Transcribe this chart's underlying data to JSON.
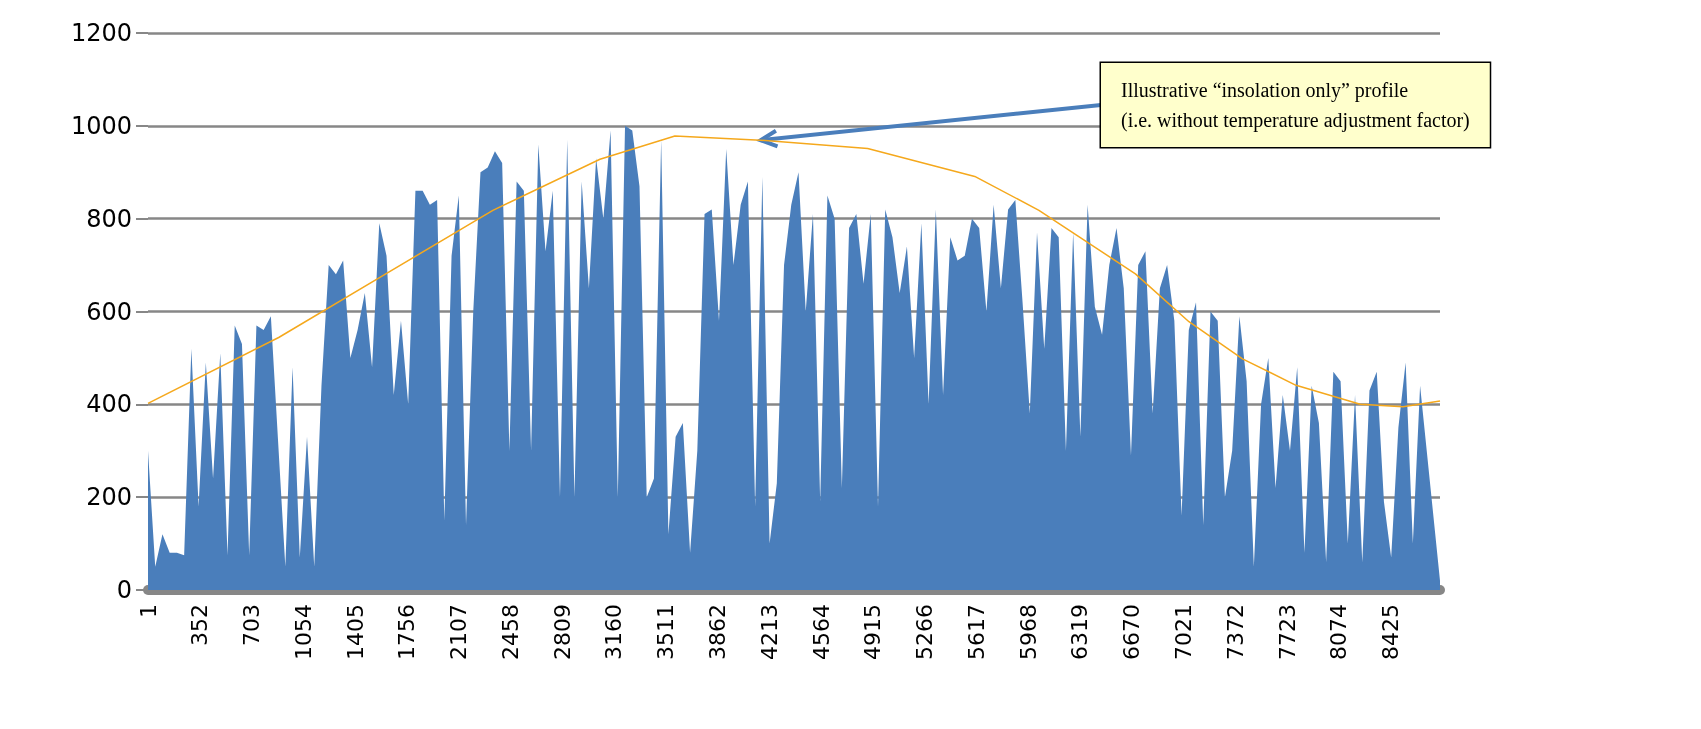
{
  "chart_data": {
    "type": "area",
    "xlim": [
      1,
      8760
    ],
    "xticks": [
      1,
      352,
      703,
      1054,
      1405,
      1756,
      2107,
      2458,
      2809,
      3160,
      3511,
      3862,
      4213,
      4564,
      4915,
      5266,
      5617,
      5968,
      6319,
      6670,
      7021,
      7372,
      7723,
      8074,
      8425
    ],
    "ylim": [
      0,
      1200
    ],
    "yticks": [
      0,
      200,
      400,
      600,
      800,
      1000,
      1200
    ],
    "grid": "y",
    "marker": "none",
    "annotations": [
      {
        "text": "Illustrative “insolation only” profile\n(i.e. without temperature adjustment factor)",
        "x": 4154,
        "y": 969
      }
    ],
    "series": [
      {
        "color": "#4a7ebb",
        "x": [
          1,
          50,
          99,
          148,
          197,
          246,
          295,
          344,
          393,
          442,
          491,
          540,
          589,
          638,
          687,
          736,
          785,
          834,
          883,
          932,
          981,
          1030,
          1079,
          1128,
          1177,
          1226,
          1275,
          1324,
          1373,
          1422,
          1471,
          1520,
          1569,
          1618,
          1667,
          1716,
          1765,
          1814,
          1863,
          1912,
          1961,
          2010,
          2059,
          2108,
          2157,
          2206,
          2255,
          2304,
          2353,
          2402,
          2451,
          2500,
          2549,
          2598,
          2647,
          2696,
          2745,
          2794,
          2843,
          2892,
          2941,
          2990,
          3039,
          3088,
          3137,
          3186,
          3235,
          3284,
          3333,
          3382,
          3431,
          3480,
          3529,
          3578,
          3627,
          3676,
          3725,
          3774,
          3823,
          3872,
          3921,
          3970,
          4019,
          4068,
          4117,
          4166,
          4215,
          4264,
          4313,
          4362,
          4411,
          4460,
          4509,
          4558,
          4607,
          4656,
          4705,
          4754,
          4803,
          4852,
          4901,
          4950,
          4999,
          5048,
          5097,
          5146,
          5195,
          5244,
          5293,
          5342,
          5391,
          5440,
          5489,
          5538,
          5587,
          5636,
          5685,
          5734,
          5783,
          5832,
          5881,
          5930,
          5979,
          6028,
          6077,
          6126,
          6175,
          6224,
          6273,
          6322,
          6371,
          6420,
          6469,
          6518,
          6567,
          6616,
          6665,
          6714,
          6763,
          6812,
          6861,
          6910,
          6959,
          7008,
          7057,
          7106,
          7155,
          7204,
          7253,
          7302,
          7351,
          7400,
          7449,
          7498,
          7547,
          7596,
          7645,
          7694,
          7743,
          7792,
          7841,
          7890,
          7939,
          7988,
          8037,
          8086,
          8135,
          8184,
          8233,
          8282,
          8331,
          8380,
          8429,
          8478,
          8527,
          8576,
          8625,
          8760
        ],
        "values": [
          300,
          50,
          120,
          80,
          80,
          75,
          520,
          180,
          490,
          240,
          510,
          75,
          570,
          530,
          75,
          570,
          560,
          590,
          320,
          50,
          480,
          70,
          330,
          50,
          440,
          700,
          680,
          710,
          500,
          560,
          640,
          480,
          790,
          720,
          420,
          580,
          400,
          860,
          860,
          830,
          840,
          150,
          720,
          850,
          140,
          600,
          900,
          910,
          945,
          920,
          300,
          880,
          860,
          300,
          960,
          730,
          860,
          200,
          970,
          200,
          880,
          650,
          930,
          800,
          990,
          200,
          1000,
          990,
          870,
          200,
          240,
          970,
          120,
          330,
          360,
          80,
          300,
          810,
          820,
          580,
          950,
          700,
          830,
          880,
          180,
          890,
          100,
          230,
          700,
          830,
          900,
          600,
          810,
          190,
          850,
          800,
          220,
          780,
          810,
          660,
          810,
          180,
          820,
          760,
          640,
          740,
          500,
          790,
          400,
          820,
          420,
          760,
          710,
          720,
          800,
          780,
          600,
          830,
          650,
          820,
          840,
          620,
          380,
          770,
          520,
          780,
          760,
          300,
          770,
          330,
          830,
          610,
          550,
          700,
          780,
          650,
          290,
          700,
          730,
          380,
          650,
          700,
          580,
          160,
          560,
          620,
          140,
          600,
          580,
          200,
          300,
          590,
          450,
          50,
          400,
          500,
          220,
          420,
          300,
          480,
          80,
          440,
          360,
          60,
          470,
          450,
          100,
          420,
          60,
          430,
          470,
          190,
          70,
          350,
          490,
          100,
          440,
          20
        ]
      },
      {
        "type": "line",
        "color": "#f5a81c",
        "x": [
          1,
          887,
          1613,
          2339,
          3065,
          3573,
          4154,
          4880,
          5606,
          6041,
          6695,
          7058,
          7421,
          7784,
          8219,
          8509,
          8760
        ],
        "values": [
          402,
          544,
          681,
          818,
          928,
          978,
          969,
          951,
          891,
          818,
          681,
          578,
          498,
          441,
          400,
          395,
          407
        ]
      }
    ]
  }
}
